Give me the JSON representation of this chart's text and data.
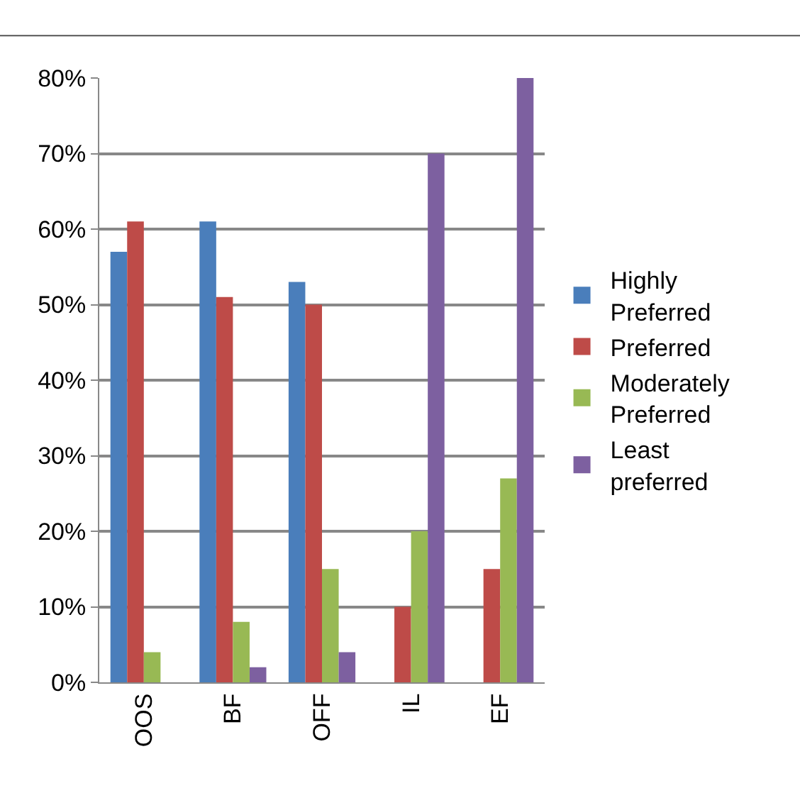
{
  "chart_data": {
    "type": "bar",
    "categories": [
      "OOS",
      "BF",
      "OFF",
      "IL",
      "EF"
    ],
    "series": [
      {
        "name": "Highly Preferred",
        "color": "#4a7ebb",
        "values": [
          57,
          61,
          53,
          0,
          0
        ]
      },
      {
        "name": "Preferred",
        "color": "#be4b48",
        "values": [
          61,
          51,
          50,
          10,
          15
        ]
      },
      {
        "name": "Moderately Preferred",
        "color": "#98b954",
        "values": [
          4,
          8,
          15,
          20,
          27
        ]
      },
      {
        "name": "Least preferred",
        "color": "#7d60a0",
        "values": [
          0,
          2,
          4,
          70,
          80
        ]
      }
    ],
    "ylim": [
      0,
      80
    ],
    "yticks": [
      {
        "value": 0,
        "label": "0%"
      },
      {
        "value": 10,
        "label": "10%"
      },
      {
        "value": 20,
        "label": "20%"
      },
      {
        "value": 30,
        "label": "30%"
      },
      {
        "value": 40,
        "label": "40%"
      },
      {
        "value": 50,
        "label": "50%"
      },
      {
        "value": 60,
        "label": "60%"
      },
      {
        "value": 70,
        "label": "70%"
      },
      {
        "value": 80,
        "label": "80%"
      }
    ],
    "grid": "y",
    "legend": "right"
  }
}
